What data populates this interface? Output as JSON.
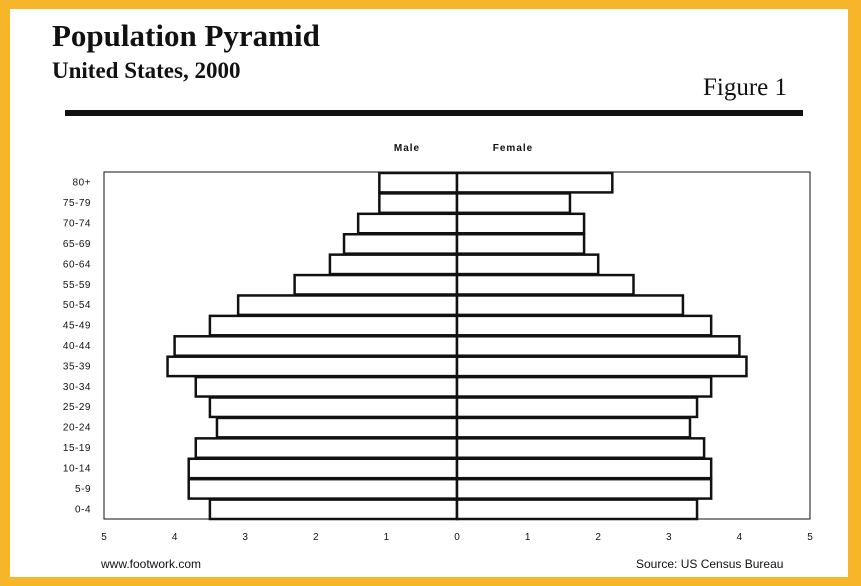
{
  "title": "Population Pyramid",
  "subtitle": "United States, 2000",
  "figure_label": "Figure 1",
  "footer": {
    "website": "www.footwork.com",
    "source": "Source: US Census Bureau"
  },
  "colors": {
    "frame": "#f7b52a",
    "bar_fill": "#ffffff",
    "bar_stroke": "#111111"
  },
  "chart_data": {
    "type": "bar",
    "orientation": "horizontal",
    "layout": "population-pyramid",
    "categories": [
      "80+",
      "75-79",
      "70-74",
      "65-69",
      "60-64",
      "55-59",
      "50-54",
      "45-49",
      "40-44",
      "35-39",
      "30-34",
      "25-29",
      "20-24",
      "15-19",
      "10-14",
      "5-9",
      "0-4"
    ],
    "series": [
      {
        "name": "Male",
        "values": [
          1.1,
          1.1,
          1.4,
          1.6,
          1.8,
          2.3,
          3.1,
          3.5,
          4.0,
          4.1,
          3.7,
          3.5,
          3.4,
          3.7,
          3.8,
          3.8,
          3.5
        ]
      },
      {
        "name": "Female",
        "values": [
          2.2,
          1.6,
          1.8,
          1.8,
          2.0,
          2.5,
          3.2,
          3.6,
          4.0,
          4.1,
          3.6,
          3.4,
          3.3,
          3.5,
          3.6,
          3.6,
          3.4
        ]
      }
    ],
    "x_ticks": [
      "5",
      "4",
      "3",
      "2",
      "1",
      "0",
      "1",
      "2",
      "3",
      "4",
      "5"
    ],
    "xlim": [
      -5,
      5
    ],
    "grid": false,
    "legend": "top-center"
  }
}
